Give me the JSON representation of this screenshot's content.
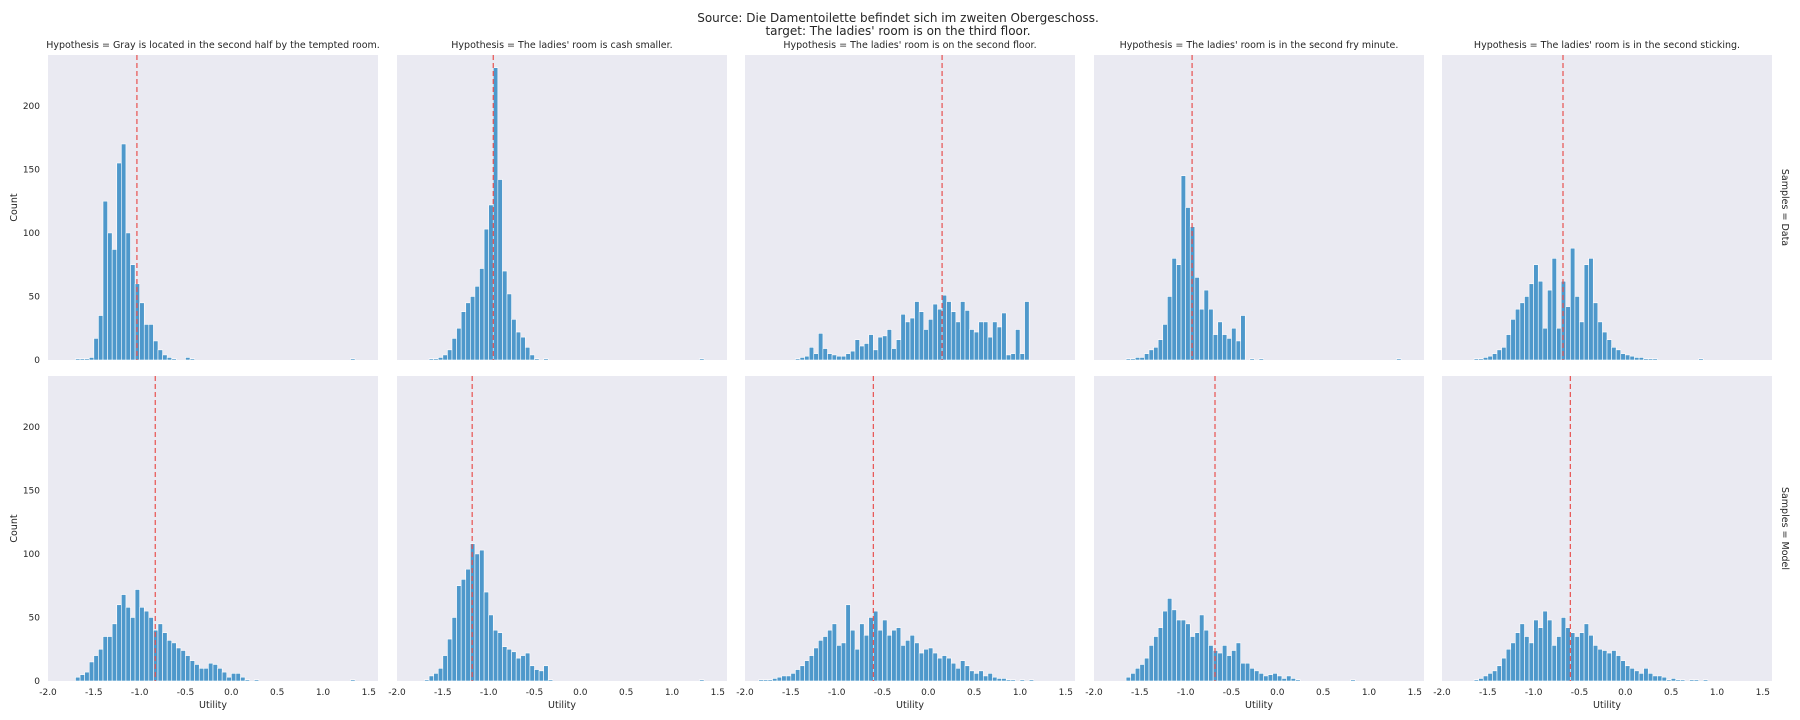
{
  "chart_data": {
    "type": "histogram-facet-grid",
    "title_lines": [
      "Source: Die Damentoilette befindet sich im zweiten Obergeschoss.",
      "target: The ladies' room is on the third floor."
    ],
    "xlabel": "Utility",
    "ylabel": "Count",
    "xlim": [
      -2.0,
      1.6
    ],
    "ylim": [
      0,
      240
    ],
    "xticks": [
      "-2.0",
      "-1.5",
      "-1.0",
      "-0.5",
      "0.0",
      "0.5",
      "1.0",
      "1.5"
    ],
    "yticks": [
      "0",
      "50",
      "100",
      "150",
      "200"
    ],
    "bar_color": "#3d8fc6",
    "mean_line_color": "#e8514f",
    "background": "#eaeaf2",
    "grid": false,
    "rows": [
      {
        "label": "Samples = Data"
      },
      {
        "label": "Samples = Model"
      }
    ],
    "columns": [
      {
        "title": "Hypothesis = Gray is located in the second half by the tempted room."
      },
      {
        "title": "Hypothesis = The ladies' room is cash smaller."
      },
      {
        "title": "Hypothesis = The ladies' room is on the second floor."
      },
      {
        "title": "Hypothesis = The ladies' room is in the second fry minute."
      },
      {
        "title": "Hypothesis = The ladies' room is in the second sticking."
      }
    ],
    "panels": [
      [
        {
          "bin_start": -1.7,
          "bin_width": 0.05,
          "mean": -1.03,
          "counts": [
            1,
            1,
            1,
            2,
            17,
            35,
            125,
            100,
            87,
            155,
            170,
            100,
            75,
            60,
            45,
            28,
            28,
            15,
            8,
            4,
            2,
            1,
            0,
            0,
            2,
            1,
            0,
            0,
            0,
            0,
            0,
            0,
            0,
            0,
            0,
            0,
            0,
            0,
            0,
            0,
            0,
            0,
            0,
            0,
            0,
            0,
            0,
            0,
            0,
            0,
            0,
            0,
            0,
            0,
            0,
            0,
            0,
            0,
            0,
            0,
            1
          ]
        },
        {
          "bin_start": -1.7,
          "bin_width": 0.05,
          "mean": -0.95,
          "counts": [
            0,
            1,
            1,
            2,
            4,
            8,
            17,
            25,
            38,
            45,
            50,
            58,
            72,
            103,
            122,
            230,
            142,
            70,
            52,
            32,
            22,
            18,
            10,
            4,
            1,
            0,
            1,
            0,
            0,
            0,
            0,
            0,
            0,
            0,
            0,
            0,
            0,
            0,
            0,
            0,
            0,
            0,
            0,
            0,
            0,
            0,
            0,
            0,
            0,
            0,
            0,
            0,
            0,
            0,
            0,
            0,
            0,
            0,
            0,
            0,
            1
          ]
        },
        {
          "bin_start": -1.45,
          "bin_width": 0.05,
          "mean": 0.15,
          "counts": [
            1,
            2,
            3,
            10,
            5,
            21,
            9,
            5,
            4,
            3,
            3,
            5,
            7,
            16,
            11,
            13,
            20,
            8,
            18,
            19,
            24,
            9,
            16,
            36,
            30,
            33,
            46,
            38,
            24,
            32,
            44,
            40,
            51,
            46,
            38,
            30,
            46,
            39,
            24,
            22,
            30,
            30,
            18,
            30,
            26,
            37,
            4,
            5,
            24,
            5,
            46
          ]
        },
        {
          "bin_start": -1.7,
          "bin_width": 0.05,
          "mean": -0.93,
          "counts": [
            0,
            1,
            1,
            2,
            2,
            5,
            8,
            10,
            16,
            28,
            50,
            80,
            75,
            145,
            120,
            105,
            65,
            40,
            55,
            40,
            20,
            30,
            20,
            17,
            25,
            15,
            35,
            0,
            1,
            0,
            1,
            0,
            0,
            0,
            0,
            0,
            0,
            0,
            0,
            0,
            0,
            0,
            0,
            0,
            0,
            0,
            0,
            0,
            0,
            0,
            0,
            0,
            0,
            0,
            0,
            0,
            0,
            0,
            0,
            0,
            1
          ]
        },
        {
          "bin_start": -1.7,
          "bin_width": 0.05,
          "mean": -0.68,
          "counts": [
            0,
            1,
            1,
            2,
            3,
            5,
            8,
            10,
            20,
            32,
            40,
            45,
            50,
            60,
            75,
            62,
            25,
            55,
            80,
            25,
            62,
            42,
            88,
            50,
            30,
            75,
            80,
            45,
            30,
            22,
            16,
            10,
            8,
            5,
            4,
            3,
            2,
            2,
            1,
            1,
            1,
            0,
            0,
            0,
            0,
            0,
            0,
            0,
            0,
            0,
            1
          ]
        }
      ],
      [
        {
          "bin_start": -1.7,
          "bin_width": 0.05,
          "mean": -0.83,
          "counts": [
            3,
            5,
            7,
            15,
            20,
            25,
            35,
            35,
            45,
            60,
            68,
            58,
            50,
            72,
            58,
            55,
            50,
            40,
            45,
            38,
            32,
            30,
            26,
            24,
            20,
            16,
            13,
            10,
            10,
            14,
            13,
            10,
            7,
            3,
            6,
            6,
            3,
            1,
            0,
            1,
            0,
            0,
            0,
            0,
            0,
            0,
            0,
            0,
            0,
            0,
            0,
            0,
            0,
            0,
            0,
            0,
            0,
            0,
            0,
            0,
            1
          ]
        },
        {
          "bin_start": -1.7,
          "bin_width": 0.05,
          "mean": -1.18,
          "counts": [
            1,
            4,
            6,
            10,
            20,
            33,
            50,
            75,
            80,
            88,
            108,
            100,
            103,
            70,
            52,
            40,
            38,
            27,
            25,
            23,
            18,
            20,
            22,
            12,
            9,
            8,
            12,
            1,
            0,
            0,
            0,
            0,
            0,
            0,
            0,
            0,
            0,
            0,
            0,
            0,
            0,
            0,
            0,
            0,
            0,
            0,
            0,
            0,
            0,
            0,
            0,
            0,
            0,
            0,
            0,
            0,
            0,
            0,
            0,
            0,
            1
          ]
        },
        {
          "bin_start": -1.9,
          "bin_width": 0.05,
          "mean": -0.6,
          "counts": [
            0,
            1,
            1,
            1,
            2,
            3,
            4,
            4,
            6,
            9,
            12,
            16,
            20,
            26,
            32,
            35,
            40,
            45,
            28,
            30,
            60,
            40,
            25,
            45,
            36,
            50,
            55,
            40,
            48,
            36,
            40,
            42,
            28,
            32,
            36,
            30,
            22,
            25,
            26,
            22,
            18,
            20,
            18,
            14,
            10,
            16,
            12,
            8,
            6,
            8,
            4,
            6,
            3,
            2,
            2,
            1,
            1,
            0,
            1,
            0,
            1
          ]
        },
        {
          "bin_start": -1.7,
          "bin_width": 0.05,
          "mean": -0.68,
          "counts": [
            0,
            3,
            6,
            10,
            13,
            18,
            28,
            35,
            42,
            55,
            65,
            56,
            48,
            48,
            45,
            35,
            38,
            52,
            40,
            28,
            24,
            22,
            28,
            20,
            24,
            30,
            14,
            14,
            10,
            8,
            6,
            4,
            5,
            6,
            4,
            2,
            4,
            2,
            1,
            0,
            0,
            0,
            0,
            0,
            0,
            0,
            0,
            0,
            0,
            0,
            1
          ]
        },
        {
          "bin_start": -1.7,
          "bin_width": 0.05,
          "mean": -0.6,
          "counts": [
            0,
            1,
            2,
            4,
            6,
            8,
            12,
            18,
            25,
            30,
            38,
            45,
            35,
            30,
            48,
            42,
            55,
            48,
            28,
            35,
            50,
            42,
            38,
            35,
            38,
            45,
            36,
            28,
            25,
            24,
            22,
            24,
            20,
            16,
            12,
            10,
            8,
            6,
            10,
            6,
            4,
            4,
            3,
            1,
            2,
            1,
            1,
            0,
            1,
            1,
            0,
            1
          ]
        }
      ]
    ]
  }
}
